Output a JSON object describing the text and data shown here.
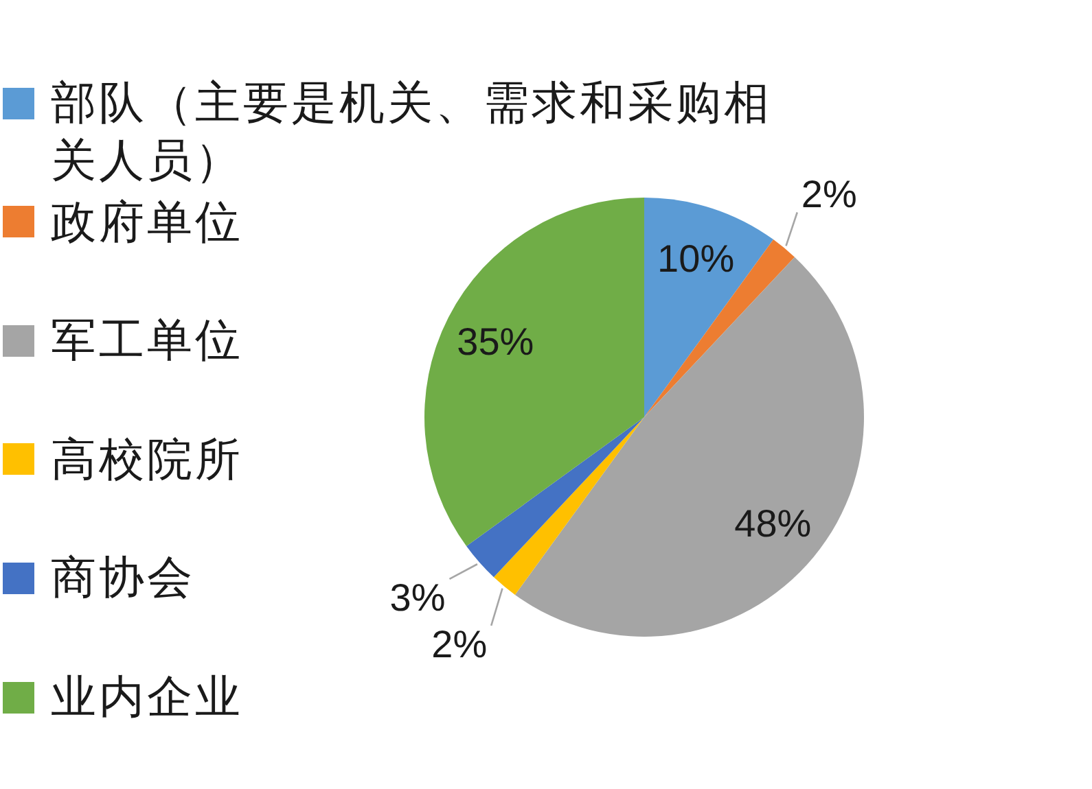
{
  "chart_data": {
    "type": "pie",
    "categories": [
      "部队（主要是机关、需求和采购相关人员）",
      "政府单位",
      "军工单位",
      "高校院所",
      "商协会",
      "业内企业"
    ],
    "values": [
      10,
      2,
      48,
      2,
      3,
      35
    ],
    "colors": [
      "#5b9bd5",
      "#ed7d31",
      "#a5a5a5",
      "#ffc000",
      "#4472c4",
      "#70ad47"
    ],
    "value_labels": [
      "10%",
      "2%",
      "48%",
      "2%",
      "3%",
      "35%"
    ],
    "legend": "left"
  }
}
